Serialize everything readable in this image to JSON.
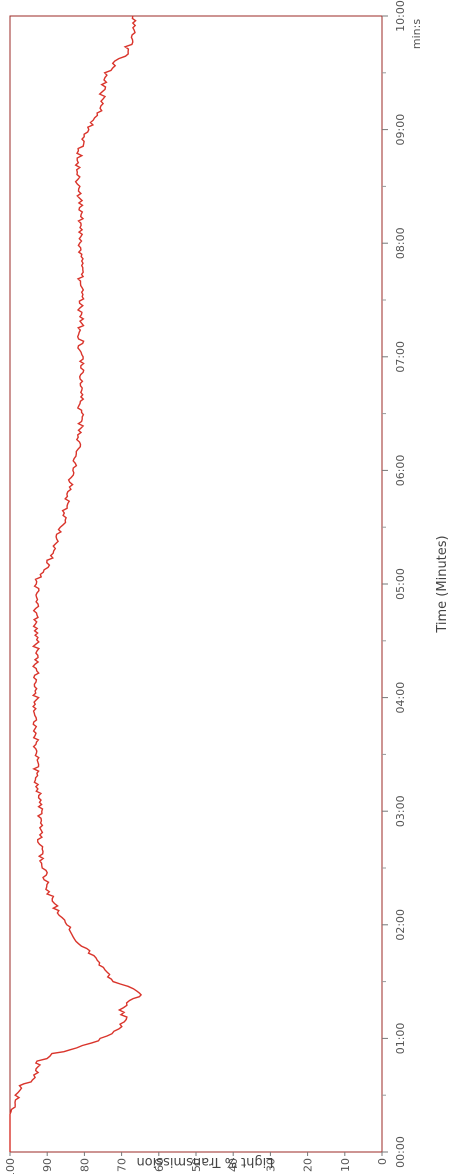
{
  "chart_data": {
    "type": "line",
    "title": "",
    "xlabel": "Time (Minutes)",
    "ylabel": "Light % Transmission",
    "x_unit_label": "min:s",
    "xlim": [
      0,
      600
    ],
    "ylim": [
      0,
      100
    ],
    "x_ticks": [
      "00:00",
      "01:00",
      "02:00",
      "03:00",
      "04:00",
      "05:00",
      "06:00",
      "07:00",
      "08:00",
      "09:00",
      "10:00"
    ],
    "y_ticks": [
      "0",
      "10",
      "20",
      "30",
      "40",
      "50",
      "60",
      "70",
      "80",
      "90",
      "100"
    ],
    "grid": false,
    "colors": {
      "series": "#d9342b",
      "frame": "#9b2a25"
    },
    "series": [
      {
        "x": [
          0,
          10,
          20,
          25,
          30,
          35,
          38,
          42,
          45,
          48,
          52,
          55,
          60,
          65,
          70,
          75,
          80,
          82,
          85,
          90,
          100,
          110,
          120,
          130,
          140,
          150,
          160,
          170,
          180,
          200,
          220,
          240,
          260,
          280,
          300,
          305,
          310,
          320,
          330,
          340,
          350,
          360,
          370,
          380,
          400,
          420,
          440,
          460,
          480,
          500,
          510,
          520,
          530,
          540,
          550,
          560,
          570,
          575,
          580,
          585,
          590,
          595,
          600
        ],
        "y": [
          100,
          100,
          100,
          99,
          98,
          97,
          94,
          93,
          93,
          92,
          88,
          82,
          75,
          71,
          69,
          70,
          68,
          65,
          66,
          72,
          76,
          81,
          85,
          88,
          90,
          91,
          92,
          92,
          92,
          93,
          93,
          93,
          93,
          93,
          93,
          92,
          90,
          88,
          86,
          85,
          84,
          83,
          82,
          81,
          81,
          81,
          81,
          81,
          81,
          81,
          82,
          82,
          81,
          79,
          76,
          75,
          74,
          72,
          69,
          68,
          67,
          67,
          67
        ]
      }
    ]
  }
}
